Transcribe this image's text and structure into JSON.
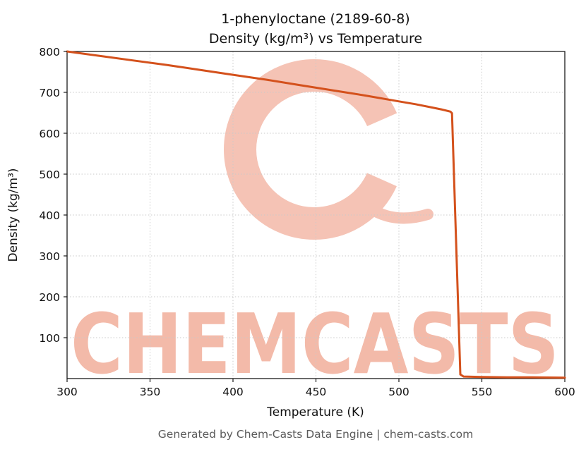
{
  "header": {
    "title_line1": "1-phenyloctane (2189-60-8)",
    "title_line2": "Density (kg/m³) vs Temperature"
  },
  "footer": {
    "text": "Generated by Chem-Casts Data Engine | chem-casts.com"
  },
  "watermark": {
    "text": "CHEMCASTS",
    "color": "#f3baa9",
    "logo_color": "#f5c3b5"
  },
  "colors": {
    "line": "#d4511c",
    "grid": "#c9c9c9",
    "spine": "#1a1a1a",
    "background": "#ffffff",
    "footer_text": "#5a5a5a"
  },
  "chart_data": {
    "type": "line",
    "title": "1-phenyloctane (2189-60-8) Density (kg/m³) vs Temperature",
    "xlabel": "Temperature (K)",
    "ylabel": "Density (kg/m³)",
    "xlim": [
      300,
      600
    ],
    "ylim": [
      0,
      800
    ],
    "x_ticks": [
      300,
      350,
      400,
      450,
      500,
      550,
      600
    ],
    "y_ticks": [
      100,
      200,
      300,
      400,
      500,
      600,
      700,
      800
    ],
    "grid": true,
    "legend": "none",
    "series": [
      {
        "name": "Density",
        "color": "#d4511c",
        "points": [
          [
            300,
            800
          ],
          [
            320,
            789
          ],
          [
            340,
            778
          ],
          [
            360,
            767
          ],
          [
            380,
            755
          ],
          [
            400,
            743
          ],
          [
            420,
            731
          ],
          [
            440,
            718
          ],
          [
            460,
            705
          ],
          [
            480,
            692
          ],
          [
            500,
            678
          ],
          [
            510,
            671
          ],
          [
            520,
            663
          ],
          [
            526,
            658
          ],
          [
            531,
            653
          ],
          [
            532,
            649
          ],
          [
            537,
            10
          ],
          [
            539,
            5
          ],
          [
            550,
            4
          ],
          [
            565,
            3
          ],
          [
            580,
            3
          ],
          [
            600,
            2
          ]
        ]
      }
    ]
  }
}
